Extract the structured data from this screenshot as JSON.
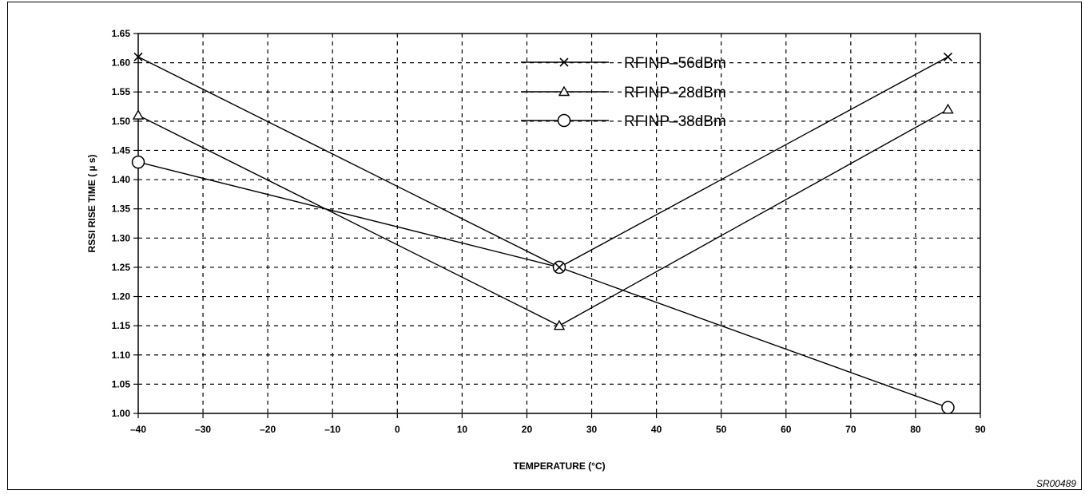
{
  "chart_data": {
    "type": "line",
    "xlabel": "TEMPERATURE (°C)",
    "ylabel": "RSSI RISE TIME  ( µ s)",
    "xlim": [
      -40,
      90
    ],
    "ylim": [
      1.0,
      1.65
    ],
    "x_ticks": [
      -40,
      -30,
      -20,
      -10,
      0,
      10,
      20,
      30,
      40,
      50,
      60,
      70,
      80,
      90
    ],
    "x_tick_labels": [
      "–40",
      "–30",
      "–20",
      "–10",
      "0",
      "10",
      "20",
      "30",
      "40",
      "50",
      "60",
      "70",
      "80",
      "90"
    ],
    "y_ticks": [
      1.0,
      1.05,
      1.1,
      1.15,
      1.2,
      1.25,
      1.3,
      1.35,
      1.4,
      1.45,
      1.5,
      1.55,
      1.6,
      1.65
    ],
    "y_tick_labels": [
      "1.00",
      "1.05",
      "1.10",
      "1.15",
      "1.20",
      "1.25",
      "1.30",
      "1.35",
      "1.40",
      "1.45",
      "1.50",
      "1.55",
      "1.60",
      "1.65"
    ],
    "grid": true,
    "legend_position": "top-center",
    "series": [
      {
        "name": "RFINP–56dBm",
        "marker": "x",
        "x": [
          -40,
          25,
          85
        ],
        "y": [
          1.61,
          1.25,
          1.61
        ]
      },
      {
        "name": "RFINP–28dBm",
        "marker": "triangle",
        "x": [
          -40,
          25,
          85
        ],
        "y": [
          1.51,
          1.15,
          1.52
        ]
      },
      {
        "name": "RFINP–38dBm",
        "marker": "circle",
        "x": [
          -40,
          25,
          85
        ],
        "y": [
          1.43,
          1.25,
          1.01
        ]
      }
    ]
  },
  "figure_code": "SR00489"
}
